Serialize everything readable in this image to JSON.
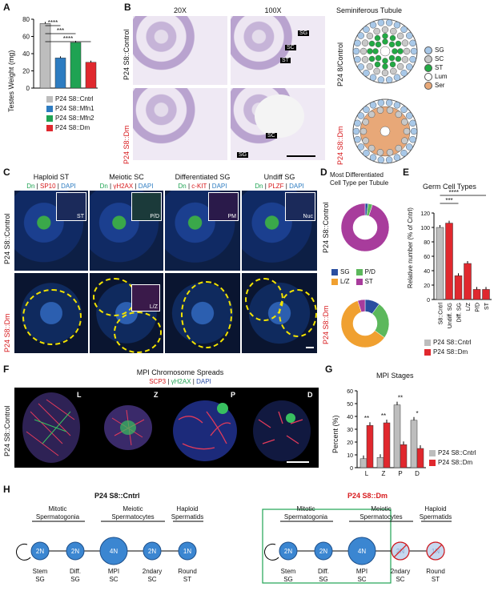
{
  "panels": {
    "A": {
      "letter": "A",
      "ylabel": "Testes Weight (mg)",
      "yticks": [
        "0",
        "20",
        "40",
        "60",
        "80"
      ],
      "ylim": [
        0,
        80
      ],
      "significance": [
        "****",
        "***",
        "****"
      ],
      "legend": [
        {
          "label": "P24 S8::Cntrl",
          "color": "#bdbdbd"
        },
        {
          "label": "P24 S8::Mfn1",
          "color": "#2d7cc1"
        },
        {
          "label": "P24 S8::Mfn2",
          "color": "#1fa353"
        },
        {
          "label": "P24 S8::Dm",
          "color": "#e0282e"
        }
      ]
    },
    "B": {
      "letter": "B",
      "col_20x": "20X",
      "col_100x": "100X",
      "schematic_title": "Seminiferous Tubule",
      "row_control": "P24 S8::Control",
      "row_dm": "P24 S8::Dm",
      "labels_control": [
        "SG",
        "SC",
        "ST"
      ],
      "labels_dm": [
        "SC",
        "SG"
      ],
      "schem_control_label": "P24 8/Control",
      "schem_dm_label": "P24 S8::Dm",
      "legend": [
        {
          "label": "SG",
          "color": "#a8c8e8"
        },
        {
          "label": "SC",
          "color": "#c8c8c8"
        },
        {
          "label": "ST",
          "color": "#22aa44"
        },
        {
          "label": "Lum",
          "color": "#ffffff"
        },
        {
          "label": "Ser",
          "color": "#e8a878"
        }
      ]
    },
    "C": {
      "letter": "C",
      "columns": [
        {
          "title": "Haploid ST",
          "stain_dn": "Dn",
          "stain_marker": "SP10",
          "stain_dapi": "DAPI",
          "inset": "ST"
        },
        {
          "title": "Meiotic SC",
          "stain_dn": "Dn",
          "stain_marker": "γH2AX",
          "stain_dapi": "DAPI",
          "inset": "P/D"
        },
        {
          "title": "Differentiated SG",
          "stain_dn": "Dn",
          "stain_marker": "c-KIT",
          "stain_dapi": "DAPI",
          "inset": "PM"
        },
        {
          "title": "Undiff SG",
          "stain_dn": "Dn",
          "stain_marker": "PLZF",
          "stain_dapi": "DAPI",
          "inset": "Nuc"
        }
      ],
      "row_control": "P24 S8::Control",
      "row_dm": "P24 S8::Dm",
      "dm_inset": "L/Z"
    },
    "D": {
      "letter": "D",
      "title_line1": "Most Differentiated",
      "title_line2": "Cell Type per Tubule",
      "row_control": "P24 S8::Control",
      "row_dm": "P24 S8::Dm",
      "legend": [
        {
          "label": "SG",
          "color": "#2a4ea0"
        },
        {
          "label": "P/D",
          "color": "#5cb85c"
        },
        {
          "label": "L/Z",
          "color": "#f0a030"
        },
        {
          "label": "ST",
          "color": "#a83c9c"
        }
      ]
    },
    "E": {
      "letter": "E",
      "title": "Germ Cell Types",
      "ylabel": "Relative number (% of Cntrl)",
      "yticks": [
        "0",
        "20",
        "40",
        "60",
        "80",
        "100",
        "120"
      ],
      "significance": [
        "****",
        "***"
      ],
      "legend": [
        {
          "label": "P24 S8::Cntrl",
          "color": "#bdbdbd"
        },
        {
          "label": "P24 S8::Dm",
          "color": "#e0282e"
        }
      ]
    },
    "F": {
      "letter": "F",
      "title": "MPI Chromosome Spreads",
      "stain_a": "SCP3",
      "stain_b": "γH2AX",
      "stain_c": "DAPI",
      "row_label": "P24 S8::Control",
      "stages": [
        "L",
        "Z",
        "P",
        "D"
      ]
    },
    "G": {
      "letter": "G",
      "title": "MPI Stages",
      "ylabel": "Percent (%)",
      "yticks": [
        "0",
        "10",
        "20",
        "30",
        "40",
        "50",
        "60"
      ],
      "significance": [
        "**",
        "**",
        "**",
        "*"
      ],
      "legend": [
        {
          "label": "P24 S8::Cntrl",
          "color": "#bdbdbd"
        },
        {
          "label": "P24 S8::Dm",
          "color": "#e0282e"
        }
      ]
    },
    "H": {
      "letter": "H",
      "left_title": "P24 S8::Cntrl",
      "right_title": "P24 S8::Dm",
      "groups": [
        "Mitotic\nSpermatogonia",
        "Meiotic\nSpermatocytes",
        "Haploid\nSpermatids"
      ],
      "group_mitotic": "Mitotic",
      "group_mitotic_2": "Spermatogonia",
      "group_meiotic": "Meiotic",
      "group_meiotic_2": "Spermatocytes",
      "group_haploid": "Haploid",
      "group_haploid_2": "Spermatids",
      "nodes": [
        "2N",
        "2N",
        "4N",
        "2N",
        "1N"
      ],
      "node_labels": [
        {
          "a": "Stem",
          "b": "SG"
        },
        {
          "a": "Diff.",
          "b": "SG"
        },
        {
          "a": "MPI",
          "b": "SC"
        },
        {
          "a": "2ndary",
          "b": "SC"
        },
        {
          "a": "Round",
          "b": "ST"
        }
      ]
    }
  },
  "chart_data": [
    {
      "type": "bar",
      "title": "",
      "ylabel": "Testes Weight (mg)",
      "ylim": [
        0,
        80
      ],
      "categories": [
        "P24 S8::Cntrl",
        "P24 S8::Mfn1",
        "P24 S8::Mfn2",
        "P24 S8::Dm"
      ],
      "values": [
        75,
        35,
        53,
        30
      ],
      "colors": [
        "#bdbdbd",
        "#2d7cc1",
        "#1fa353",
        "#e0282e"
      ]
    },
    {
      "type": "pie",
      "title": "P24 S8::Control",
      "categories": [
        "SG",
        "P/D",
        "L/Z",
        "ST"
      ],
      "values": [
        2,
        3,
        0,
        95
      ],
      "colors": [
        "#2a4ea0",
        "#5cb85c",
        "#f0a030",
        "#a83c9c"
      ]
    },
    {
      "type": "pie",
      "title": "P24 S8::Dm",
      "categories": [
        "SG",
        "P/D",
        "L/Z",
        "ST"
      ],
      "values": [
        10,
        25,
        60,
        5
      ],
      "colors": [
        "#2a4ea0",
        "#5cb85c",
        "#f0a030",
        "#a83c9c"
      ]
    },
    {
      "type": "bar",
      "title": "Germ Cell Types",
      "ylabel": "Relative number (% of Cntrl)",
      "ylim": [
        0,
        120
      ],
      "categories": [
        "S8::Cntrl",
        "Undiff. SG",
        "Diff. SG",
        "L/Z",
        "P/D",
        "ST"
      ],
      "series": [
        {
          "name": "P24 S8::Cntrl",
          "values": [
            100,
            null,
            null,
            null,
            null,
            null
          ]
        },
        {
          "name": "P24 S8::Dm",
          "values": [
            null,
            106,
            33,
            50,
            14,
            14
          ]
        }
      ]
    },
    {
      "type": "bar",
      "title": "MPI Stages",
      "ylabel": "Percent (%)",
      "ylim": [
        0,
        60
      ],
      "categories": [
        "L",
        "Z",
        "P",
        "D"
      ],
      "series": [
        {
          "name": "P24 S8::Cntrl",
          "values": [
            7,
            8,
            49,
            37
          ]
        },
        {
          "name": "P24 S8::Dm",
          "values": [
            33,
            35,
            18,
            15
          ]
        }
      ]
    }
  ]
}
